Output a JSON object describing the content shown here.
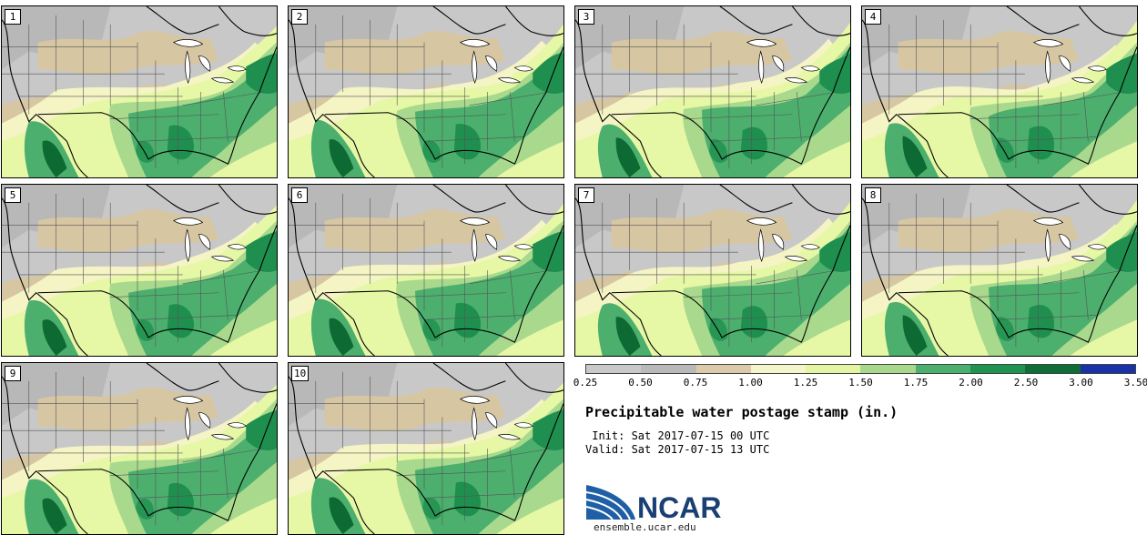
{
  "title": "Precipitable water postage stamp (in.)",
  "init_line": " Init: Sat 2017-07-15 00 UTC",
  "valid_line": "Valid: Sat 2017-07-15 13 UTC",
  "org": "NCAR",
  "url": "ensemble.ucar.edu",
  "members": [
    "1",
    "2",
    "3",
    "4",
    "5",
    "6",
    "7",
    "8",
    "9",
    "10"
  ],
  "colorbar": {
    "colors": [
      "#c9c9c9",
      "#b9b9b9",
      "#dccba8",
      "#f4f5c8",
      "#e3f5a0",
      "#a8d88c",
      "#4bb06e",
      "#1f9350",
      "#0f6e35",
      "#1a32a8"
    ],
    "ticks": [
      "0.25",
      "0.50",
      "0.75",
      "1.00",
      "1.25",
      "1.50",
      "1.75",
      "2.00",
      "2.50",
      "3.00",
      "3.50"
    ]
  },
  "palette": {
    "gray": "#c8c8c8",
    "gray_dark": "#adadad",
    "tan": "#d7c6a2",
    "cream": "#f4f4c4",
    "light_green": "#e6f7a6",
    "mid_green": "#a9d98d",
    "green": "#4caf6e",
    "dark_green": "#1e8f4e",
    "darkest_green": "#0d6a33",
    "border": "#000000",
    "state_line": "#555555"
  }
}
